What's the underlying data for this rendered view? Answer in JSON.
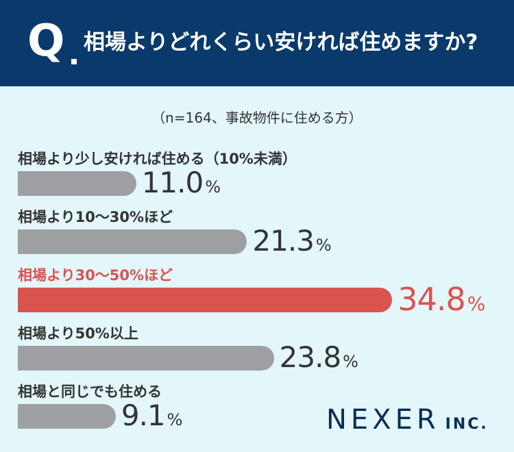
{
  "header": {
    "q_mark": "Q",
    "question": "相場よりどれくらい安ければ住めますか?"
  },
  "subtitle": "（n=164、事故物件に住める方）",
  "highlight_color": "#d9534f",
  "bar_color": "#9e9fa3",
  "header_color": "#0a3a6b",
  "chart_data": {
    "type": "bar",
    "orientation": "horizontal",
    "title": "相場よりどれくらい安ければ住めますか?",
    "subtitle": "（n=164、事故物件に住める方）",
    "unit": "%",
    "categories": [
      "相場より少し安ければ住める（10%未満）",
      "相場より10〜30%ほど",
      "相場より30〜50%ほど",
      "相場より50%以上",
      "相場と同じでも住める"
    ],
    "values": [
      11.0,
      21.3,
      34.8,
      23.8,
      9.1
    ],
    "value_labels": [
      "11.0",
      "21.3",
      "34.8",
      "23.8",
      "9.1"
    ],
    "highlight_index": 2,
    "xlim": [
      0,
      40
    ]
  },
  "logo": {
    "main": "NEXER",
    "sub": "INC."
  }
}
